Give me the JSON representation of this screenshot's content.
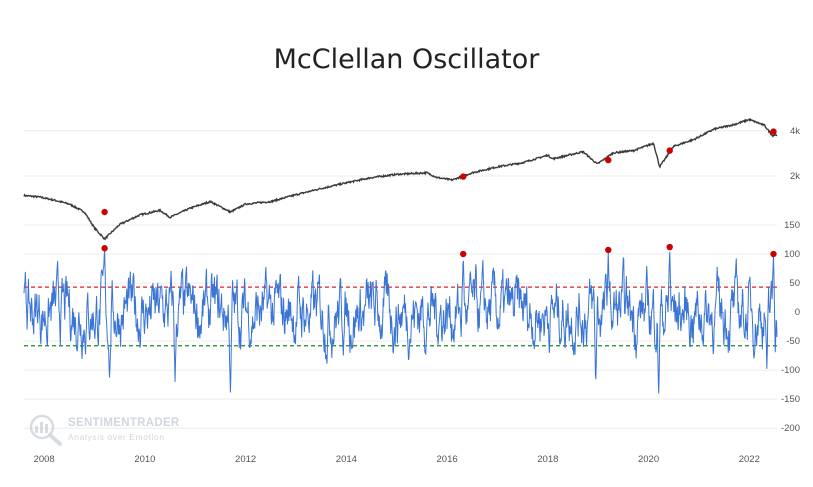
{
  "title": "McClellan Oscillator",
  "watermark": {
    "name": "SENTIMENTRADER",
    "tagline": "Analysis over Emotion"
  },
  "colors": {
    "price_line": "#3a3a3a",
    "oscillator_line": "#3a74d4",
    "upper_threshold": "#e02020",
    "lower_threshold": "#1a8a1a",
    "signal_marker": "#cc0000"
  },
  "chart_data": [
    {
      "type": "line",
      "panel": "price",
      "log_scale": true,
      "yticks": [
        {
          "label": "4k",
          "value": 4000
        },
        {
          "label": "2k",
          "value": 2000
        }
      ],
      "ylim": [
        900,
        5500
      ],
      "grid": true,
      "anchors": [
        [
          2007.6,
          1480
        ],
        [
          2007.9,
          1450
        ],
        [
          2008.2,
          1380
        ],
        [
          2008.5,
          1300
        ],
        [
          2008.8,
          1150
        ],
        [
          2009.0,
          900
        ],
        [
          2009.2,
          760
        ],
        [
          2009.5,
          950
        ],
        [
          2009.9,
          1100
        ],
        [
          2010.3,
          1180
        ],
        [
          2010.5,
          1060
        ],
        [
          2010.9,
          1220
        ],
        [
          2011.3,
          1350
        ],
        [
          2011.7,
          1150
        ],
        [
          2012.0,
          1300
        ],
        [
          2012.5,
          1350
        ],
        [
          2013.0,
          1500
        ],
        [
          2013.5,
          1650
        ],
        [
          2014.0,
          1800
        ],
        [
          2014.5,
          1950
        ],
        [
          2015.0,
          2050
        ],
        [
          2015.6,
          2100
        ],
        [
          2015.8,
          1950
        ],
        [
          2016.1,
          1880
        ],
        [
          2016.5,
          2100
        ],
        [
          2017.0,
          2300
        ],
        [
          2017.5,
          2450
        ],
        [
          2018.0,
          2750
        ],
        [
          2018.1,
          2600
        ],
        [
          2018.7,
          2900
        ],
        [
          2018.98,
          2400
        ],
        [
          2019.3,
          2850
        ],
        [
          2019.7,
          2950
        ],
        [
          2020.1,
          3300
        ],
        [
          2020.22,
          2300
        ],
        [
          2020.5,
          3150
        ],
        [
          2020.9,
          3500
        ],
        [
          2021.3,
          4100
        ],
        [
          2021.7,
          4400
        ],
        [
          2022.0,
          4750
        ],
        [
          2022.3,
          4350
        ],
        [
          2022.46,
          3700
        ],
        [
          2022.5,
          3750
        ]
      ],
      "signals": [
        {
          "x": 2009.2,
          "y": 1150
        },
        {
          "x": 2016.32,
          "y": 1980
        },
        {
          "x": 2019.2,
          "y": 2550
        },
        {
          "x": 2020.42,
          "y": 2950
        },
        {
          "x": 2022.48,
          "y": 3950
        }
      ]
    },
    {
      "type": "line",
      "panel": "oscillator",
      "ylim": [
        -210,
        150
      ],
      "yticks": [
        {
          "label": "150",
          "value": 150
        },
        {
          "label": "100",
          "value": 100
        },
        {
          "label": "50",
          "value": 50
        },
        {
          "label": "0",
          "value": 0
        },
        {
          "label": "-50",
          "value": -50
        },
        {
          "label": "-100",
          "value": -100
        },
        {
          "label": "-150",
          "value": -150
        },
        {
          "label": "-200",
          "value": -200
        }
      ],
      "thresholds": [
        {
          "value": 43,
          "style": "dashed-red"
        },
        {
          "value": -58,
          "style": "dashed-green"
        }
      ],
      "grid": true,
      "seed": 7,
      "spikes": [
        {
          "x": 2009.2,
          "y": 108
        },
        {
          "x": 2016.32,
          "y": 98
        },
        {
          "x": 2019.2,
          "y": 105
        },
        {
          "x": 2020.42,
          "y": 110
        },
        {
          "x": 2022.48,
          "y": 98
        },
        {
          "x": 2009.3,
          "y": -120
        },
        {
          "x": 2010.6,
          "y": -125
        },
        {
          "x": 2011.7,
          "y": -148
        },
        {
          "x": 2018.95,
          "y": -130
        },
        {
          "x": 2020.2,
          "y": -148
        },
        {
          "x": 2022.35,
          "y": -110
        }
      ],
      "signals": [
        {
          "x": 2009.2,
          "y": 110
        },
        {
          "x": 2016.32,
          "y": 100
        },
        {
          "x": 2019.2,
          "y": 107
        },
        {
          "x": 2020.42,
          "y": 112
        },
        {
          "x": 2022.48,
          "y": 100
        }
      ]
    }
  ],
  "x_axis": {
    "range": [
      2007.6,
      2022.55
    ],
    "ticks": [
      {
        "label": "2008",
        "value": 2008
      },
      {
        "label": "2010",
        "value": 2010
      },
      {
        "label": "2012",
        "value": 2012
      },
      {
        "label": "2014",
        "value": 2014
      },
      {
        "label": "2016",
        "value": 2016
      },
      {
        "label": "2018",
        "value": 2018
      },
      {
        "label": "2020",
        "value": 2020
      },
      {
        "label": "2022",
        "value": 2022
      }
    ]
  }
}
